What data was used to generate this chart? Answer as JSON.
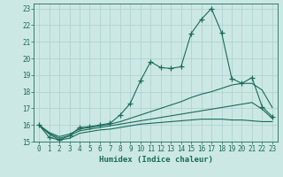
{
  "xlabel": "Humidex (Indice chaleur)",
  "background_color": "#cce8e4",
  "grid_color": "#aacfcc",
  "line_color": "#1a6b5a",
  "xlim": [
    -0.5,
    23.5
  ],
  "ylim": [
    15,
    23.3
  ],
  "yticks": [
    15,
    16,
    17,
    18,
    19,
    20,
    21,
    22,
    23
  ],
  "xticks": [
    0,
    1,
    2,
    3,
    4,
    5,
    6,
    7,
    8,
    9,
    10,
    11,
    12,
    13,
    14,
    15,
    16,
    17,
    18,
    19,
    20,
    21,
    22,
    23
  ],
  "series1_x": [
    0,
    1,
    2,
    3,
    4,
    5,
    6,
    7,
    8,
    9,
    10,
    11,
    12,
    13,
    14,
    15,
    16,
    17,
    18,
    19,
    20,
    21,
    22,
    23
  ],
  "series1_y": [
    16.0,
    15.25,
    15.1,
    15.35,
    15.85,
    15.9,
    16.0,
    16.1,
    16.6,
    17.3,
    18.65,
    19.8,
    19.45,
    19.4,
    19.5,
    21.5,
    22.35,
    23.0,
    21.55,
    18.8,
    18.5,
    18.85,
    17.1,
    16.5
  ],
  "series2_x": [
    0,
    1,
    2,
    3,
    4,
    5,
    6,
    7,
    8,
    9,
    10,
    11,
    12,
    13,
    14,
    15,
    16,
    17,
    18,
    19,
    20,
    21,
    22,
    23
  ],
  "series2_y": [
    16.0,
    15.55,
    15.3,
    15.45,
    15.75,
    15.85,
    15.95,
    16.05,
    16.2,
    16.4,
    16.6,
    16.8,
    17.0,
    17.2,
    17.4,
    17.65,
    17.85,
    18.0,
    18.2,
    18.4,
    18.5,
    18.5,
    18.1,
    17.05
  ],
  "series3_x": [
    0,
    1,
    2,
    3,
    4,
    5,
    6,
    7,
    8,
    9,
    10,
    11,
    12,
    13,
    14,
    15,
    16,
    17,
    18,
    19,
    20,
    21,
    22,
    23
  ],
  "series3_y": [
    16.0,
    15.5,
    15.2,
    15.35,
    15.65,
    15.75,
    15.85,
    15.95,
    16.05,
    16.15,
    16.25,
    16.35,
    16.45,
    16.55,
    16.65,
    16.75,
    16.85,
    16.95,
    17.05,
    17.15,
    17.25,
    17.35,
    16.95,
    16.4
  ],
  "series4_x": [
    0,
    1,
    2,
    3,
    4,
    5,
    6,
    7,
    8,
    9,
    10,
    11,
    12,
    13,
    14,
    15,
    16,
    17,
    18,
    19,
    20,
    21,
    22,
    23
  ],
  "series4_y": [
    16.0,
    15.45,
    15.1,
    15.2,
    15.5,
    15.6,
    15.7,
    15.75,
    15.85,
    15.95,
    16.05,
    16.1,
    16.15,
    16.2,
    16.25,
    16.3,
    16.35,
    16.35,
    16.35,
    16.3,
    16.3,
    16.25,
    16.2,
    16.2
  ]
}
